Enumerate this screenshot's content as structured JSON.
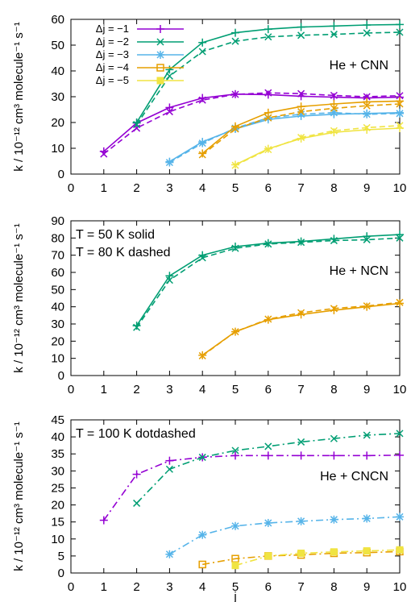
{
  "chart_data": [
    {
      "type": "line",
      "annotation": "He + CNN",
      "notes": [],
      "ylabel": "k / 10⁻¹² cm³ molecule⁻¹ s⁻¹",
      "xlabel": "",
      "xlim": [
        0,
        10
      ],
      "ylim": [
        0,
        60
      ],
      "xticks": [
        0,
        1,
        2,
        3,
        4,
        5,
        6,
        7,
        8,
        9,
        10
      ],
      "yticks": [
        0,
        10,
        20,
        30,
        40,
        50,
        60
      ],
      "legend": {
        "placement": "top-left",
        "entries": [
          {
            "label": "Δj = −1",
            "color": "#9400d3",
            "marker": "plus"
          },
          {
            "label": "Δj = −2",
            "color": "#009e73",
            "marker": "cross"
          },
          {
            "label": "Δj = −3",
            "color": "#56b4e9",
            "marker": "star"
          },
          {
            "label": "Δj = −4",
            "color": "#e69f00",
            "marker": "box"
          },
          {
            "label": "Δj = −5",
            "color": "#f0e442",
            "marker": "fbox"
          }
        ]
      },
      "series": [
        {
          "color": "#9400d3",
          "dash": "solid",
          "marker": "plus",
          "x": [
            1,
            2,
            3,
            4,
            5,
            6,
            7,
            8,
            9,
            10
          ],
          "y": [
            8.8,
            19.8,
            25.8,
            29.5,
            31.0,
            30.8,
            30.2,
            29.8,
            29.5,
            29.8
          ]
        },
        {
          "color": "#9400d3",
          "dash": "dashed",
          "marker": "cross",
          "x": [
            1,
            2,
            3,
            4,
            5,
            6,
            7,
            8,
            9,
            10
          ],
          "y": [
            7.8,
            17.8,
            24.2,
            28.7,
            30.9,
            31.5,
            31.2,
            30.5,
            30.0,
            30.4
          ]
        },
        {
          "color": "#009e73",
          "dash": "solid",
          "marker": "plus",
          "x": [
            2,
            3,
            4,
            5,
            6,
            7,
            8,
            9,
            10
          ],
          "y": [
            20.0,
            40.5,
            51.0,
            54.8,
            56.2,
            57.0,
            57.4,
            57.8,
            58.0
          ]
        },
        {
          "color": "#009e73",
          "dash": "dashed",
          "marker": "cross",
          "x": [
            2,
            3,
            4,
            5,
            6,
            7,
            8,
            9,
            10
          ],
          "y": [
            19.2,
            38.0,
            47.5,
            51.5,
            53.2,
            53.8,
            54.2,
            54.7,
            55.0
          ]
        },
        {
          "color": "#56b4e9",
          "dash": "solid",
          "marker": "plus",
          "x": [
            3,
            4,
            5,
            6,
            7,
            8,
            9,
            10
          ],
          "y": [
            4.8,
            12.5,
            17.5,
            21.2,
            22.5,
            23.2,
            23.5,
            23.8
          ]
        },
        {
          "color": "#56b4e9",
          "dash": "dashed",
          "marker": "star",
          "x": [
            3,
            4,
            5,
            6,
            7,
            8,
            9,
            10
          ],
          "y": [
            4.5,
            12.0,
            17.8,
            21.8,
            23.2,
            23.8,
            23.2,
            23.5
          ]
        },
        {
          "color": "#e69f00",
          "dash": "solid",
          "marker": "plus",
          "x": [
            4,
            5,
            6,
            7,
            8,
            9,
            10
          ],
          "y": [
            8.0,
            18.5,
            23.8,
            26.2,
            27.2,
            28.0,
            28.3
          ]
        },
        {
          "color": "#e69f00",
          "dash": "dashed",
          "marker": "cross",
          "x": [
            4,
            5,
            6,
            7,
            8,
            9,
            10
          ],
          "y": [
            7.5,
            17.5,
            21.8,
            24.2,
            25.5,
            26.5,
            27.2
          ]
        },
        {
          "color": "#f0e442",
          "dash": "solid",
          "marker": "plus",
          "x": [
            5,
            6,
            7,
            8,
            9,
            10
          ],
          "y": [
            3.6,
            9.8,
            13.8,
            16.2,
            17.2,
            17.8
          ]
        },
        {
          "color": "#f0e442",
          "dash": "dashed",
          "marker": "cross",
          "x": [
            5,
            6,
            7,
            8,
            9,
            10
          ],
          "y": [
            3.4,
            9.5,
            14.2,
            16.8,
            18.0,
            18.8
          ]
        }
      ]
    },
    {
      "type": "line",
      "annotation": "He + NCN",
      "notes": [
        "T = 50 K solid",
        "T = 80 K dashed"
      ],
      "ylabel": "k / 10⁻¹² cm³ molecule⁻¹ s⁻¹",
      "xlabel": "",
      "xlim": [
        0,
        10
      ],
      "ylim": [
        0,
        90
      ],
      "xticks": [
        0,
        1,
        2,
        3,
        4,
        5,
        6,
        7,
        8,
        9,
        10
      ],
      "yticks": [
        0,
        10,
        20,
        30,
        40,
        50,
        60,
        70,
        80,
        90
      ],
      "series": [
        {
          "color": "#009e73",
          "dash": "solid",
          "marker": "plus",
          "x": [
            2,
            3,
            4,
            5,
            6,
            7,
            8,
            9,
            10
          ],
          "y": [
            29.0,
            58.0,
            70.0,
            75.0,
            77.0,
            78.0,
            79.5,
            81.0,
            82.0
          ]
        },
        {
          "color": "#009e73",
          "dash": "dashed",
          "marker": "cross",
          "x": [
            2,
            3,
            4,
            5,
            6,
            7,
            8,
            9,
            10
          ],
          "y": [
            28.0,
            55.5,
            68.5,
            74.0,
            76.5,
            77.5,
            78.5,
            79.0,
            80.0
          ]
        },
        {
          "color": "#e69f00",
          "dash": "solid",
          "marker": "plus",
          "x": [
            4,
            5,
            6,
            7,
            8,
            9,
            10
          ],
          "y": [
            11.8,
            25.5,
            32.5,
            35.5,
            38.0,
            40.0,
            42.0
          ]
        },
        {
          "color": "#e69f00",
          "dash": "dashed",
          "marker": "cross",
          "x": [
            4,
            5,
            6,
            7,
            8,
            9,
            10
          ],
          "y": [
            11.5,
            25.5,
            32.8,
            36.5,
            39.0,
            40.5,
            42.5
          ]
        }
      ]
    },
    {
      "type": "line",
      "annotation": "He + CNCN",
      "notes": [
        "T = 100 K dotdashed"
      ],
      "ylabel": "k / 10⁻¹² cm³ molecule⁻¹ s⁻¹",
      "xlabel": "j",
      "xlim": [
        0,
        10
      ],
      "ylim": [
        0,
        45
      ],
      "xticks": [
        0,
        1,
        2,
        3,
        4,
        5,
        6,
        7,
        8,
        9,
        10
      ],
      "yticks": [
        0,
        5,
        10,
        15,
        20,
        25,
        30,
        35,
        40,
        45
      ],
      "series": [
        {
          "color": "#9400d3",
          "dash": "dotdash",
          "marker": "plus",
          "x": [
            1,
            2,
            3,
            4,
            5,
            6,
            7,
            8,
            9,
            10
          ],
          "y": [
            15.5,
            29.0,
            33.0,
            34.0,
            34.5,
            34.5,
            34.5,
            34.5,
            34.5,
            34.6
          ]
        },
        {
          "color": "#009e73",
          "dash": "dotdash",
          "marker": "cross",
          "x": [
            2,
            3,
            4,
            5,
            6,
            7,
            8,
            9,
            10
          ],
          "y": [
            20.5,
            30.5,
            34.0,
            36.0,
            37.2,
            38.5,
            39.5,
            40.5,
            41.0
          ]
        },
        {
          "color": "#56b4e9",
          "dash": "dotdash",
          "marker": "star",
          "x": [
            3,
            4,
            5,
            6,
            7,
            8,
            9,
            10
          ],
          "y": [
            5.5,
            11.2,
            13.8,
            14.7,
            15.2,
            15.7,
            16.0,
            16.5
          ]
        },
        {
          "color": "#e69f00",
          "dash": "dotdash",
          "marker": "box",
          "x": [
            4,
            5,
            6,
            7,
            8,
            9,
            10
          ],
          "y": [
            2.5,
            4.2,
            5.0,
            5.3,
            5.8,
            6.0,
            6.3
          ]
        },
        {
          "color": "#f0e442",
          "dash": "dotdash",
          "marker": "fbox",
          "x": [
            5,
            6,
            7,
            8,
            9,
            10
          ],
          "y": [
            2.2,
            5.0,
            5.8,
            6.2,
            6.5,
            6.8
          ]
        }
      ]
    }
  ]
}
